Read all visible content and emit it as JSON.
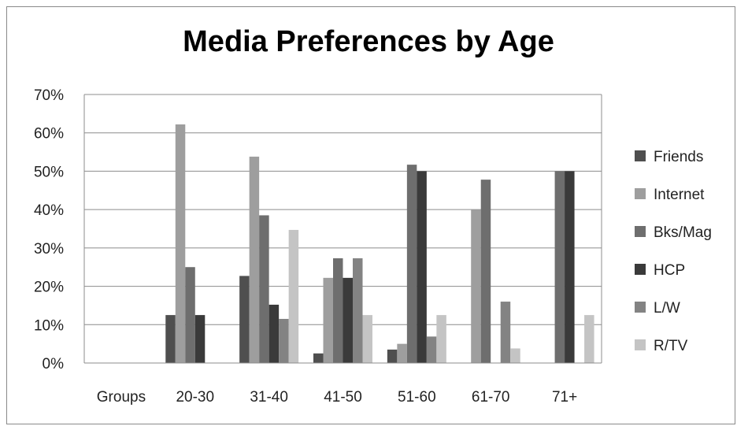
{
  "chart_data": {
    "type": "bar",
    "title": "Media Preferences by Age",
    "categories": [
      "Groups",
      "20-30",
      "31-40",
      "41-50",
      "51-60",
      "61-70",
      "71+"
    ],
    "series": [
      {
        "name": "Friends",
        "color": "#4f4f4f",
        "values": [
          null,
          12.5,
          22.7,
          2.5,
          3.5,
          null,
          null
        ]
      },
      {
        "name": "Internet",
        "color": "#9e9e9e",
        "values": [
          null,
          62.2,
          53.8,
          22.2,
          5.0,
          40.0,
          null
        ]
      },
      {
        "name": "Bks/Mag",
        "color": "#6e6e6e",
        "values": [
          null,
          25.0,
          38.5,
          27.3,
          51.7,
          47.8,
          50.0
        ]
      },
      {
        "name": "HCP",
        "color": "#3a3a3a",
        "values": [
          null,
          12.5,
          15.2,
          22.2,
          50.0,
          null,
          50.0
        ]
      },
      {
        "name": "L/W",
        "color": "#838383",
        "values": [
          null,
          null,
          11.5,
          27.3,
          6.9,
          16.0,
          null
        ]
      },
      {
        "name": "R/TV",
        "color": "#c4c4c4",
        "values": [
          null,
          null,
          34.7,
          12.5,
          12.5,
          3.8,
          12.5
        ]
      }
    ],
    "ylim": [
      0,
      70
    ],
    "yticks": [
      "0%",
      "10%",
      "20%",
      "30%",
      "40%",
      "50%",
      "60%",
      "70%"
    ],
    "grid": true,
    "legend": "right"
  }
}
